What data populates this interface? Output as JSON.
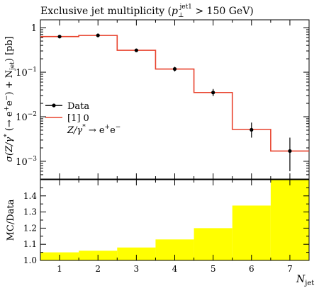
{
  "chart_data": [
    {
      "type": "line",
      "title_prefix": "Exclusive jet multiplicity (",
      "title_pt": "p",
      "title_sub": "⊥",
      "title_sup": "jet1",
      "title_suffix": " > 150 GeV)",
      "ylabel": "σ(Z/γ* (→ e⁺e⁻) + N_jet) [pb]",
      "ylabel_parts": {
        "main": "σ(Z/γ",
        "star": "*",
        "arrow": " (→ e",
        "plus": "+",
        "e2": "e",
        "minus": "−",
        "tail": ") + N",
        "sub": "jet",
        "unit": ") [pb]"
      },
      "yscale": "log",
      "ylim": [
        0.0004,
        1.5
      ],
      "xlim": [
        0.5,
        7.5
      ],
      "y_tick_labels": [
        {
          "value": 1,
          "base": "1",
          "exp": ""
        },
        {
          "value": 0.1,
          "base": "10",
          "exp": "−1"
        },
        {
          "value": 0.01,
          "base": "10",
          "exp": "−2"
        },
        {
          "value": 0.001,
          "base": "10",
          "exp": "−3"
        }
      ],
      "legend_position": "middle-left",
      "legend": {
        "data_label": "Data",
        "mc_label": "[1] 0",
        "process_prefix": "Z/γ",
        "process_star": "*",
        "process_arrow": " → e",
        "process_plus": "+",
        "process_e": "e",
        "process_minus": "−"
      },
      "series": [
        {
          "name": "Data",
          "x": [
            1,
            2,
            3,
            4,
            5,
            6,
            7
          ],
          "y": [
            0.63,
            0.67,
            0.31,
            0.118,
            0.035,
            0.0051,
            0.0017
          ],
          "y_err_low": [
            0.02,
            0.02,
            0.012,
            0.014,
            0.006,
            0.0017,
            0.0011
          ],
          "y_err_high": [
            0.02,
            0.02,
            0.012,
            0.014,
            0.007,
            0.0023,
            0.0017
          ]
        },
        {
          "name": "[1] 0",
          "type": "step",
          "bin_edges": [
            0.5,
            1.5,
            2.5,
            3.5,
            4.5,
            5.5,
            6.5,
            7.5
          ],
          "values": [
            0.63,
            0.67,
            0.31,
            0.118,
            0.035,
            0.0052,
            0.0017
          ],
          "color": "#e8432e"
        }
      ]
    },
    {
      "type": "bar",
      "ylabel": "MC/Data",
      "xlabel_main": "N",
      "xlabel_sub": "jet",
      "ylim": [
        1.0,
        1.5
      ],
      "y_ticks": [
        1.0,
        1.1,
        1.2,
        1.3,
        1.4
      ],
      "y_tick_labels": [
        "1.0",
        "1.1",
        "1.2",
        "1.3",
        "1.4"
      ],
      "x_ticks": [
        1,
        2,
        3,
        4,
        5,
        6,
        7
      ],
      "x_tick_labels": [
        "1",
        "2",
        "3",
        "4",
        "5",
        "6",
        "7"
      ],
      "bin_edges": [
        0.5,
        1.5,
        2.5,
        3.5,
        4.5,
        5.5,
        6.5,
        7.5
      ],
      "values": [
        1.05,
        1.06,
        1.08,
        1.13,
        1.2,
        1.34,
        1.5
      ],
      "color": "#ffff00",
      "reference_line": 1.0
    }
  ]
}
